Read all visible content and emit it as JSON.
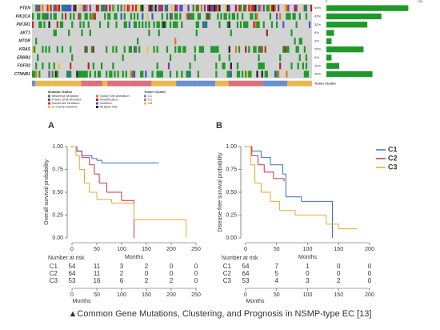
{
  "oncoprint": {
    "genes": [
      "PTEN",
      "PIK3CA",
      "PIK3R1",
      "AKT1",
      "MTOR",
      "KRAS",
      "ERBB2",
      "FGFR2",
      "CTNNB1"
    ],
    "pct": [
      64,
      43,
      32,
      6,
      4,
      29,
      4,
      10,
      36
    ],
    "pct_labels": [
      "64%",
      "43%",
      "32%",
      "6%",
      "4%",
      "29%",
      "4%",
      "10%",
      "36%"
    ],
    "scale_ticks": [
      0,
      134
    ],
    "cluster_label": "Tumor Cluster",
    "mutation_title": "Mutation Status",
    "mutation_items": [
      "Missense Mutation",
      "Frame Shift Mutation",
      "Nonsense Mutation",
      "In Frame Deletion",
      "Splice Site Alteration",
      "Amplification",
      "Deletion",
      "Multiple Hits"
    ],
    "mutation_colors": [
      "#1f9a2a",
      "#7b3fa0",
      "#c8312f",
      "#e8c23a",
      "#e07b1f",
      "#b01f3a",
      "#3a5fc8",
      "#222222"
    ],
    "cluster_title": "Tumor Cluster",
    "cluster_items": [
      "C1",
      "C2",
      "C3"
    ],
    "cluster_colors": [
      "#6a8fd0",
      "#d9707a",
      "#e8b850"
    ]
  },
  "chart_data": [
    {
      "type": "line",
      "panel": "A",
      "xlabel": "Months",
      "ylabel": "Overall survival probability",
      "xlim": [
        0,
        250
      ],
      "xticks": [
        0,
        50,
        100,
        150,
        200,
        250
      ],
      "ylim": [
        0,
        1
      ],
      "yticks": [
        {
          "value": 0,
          "label": "0.00"
        },
        {
          "value": 0.25,
          "label": "0.25"
        },
        {
          "value": 0.5,
          "label": "0.50"
        },
        {
          "value": 0.75,
          "label": "0.75"
        },
        {
          "value": 1,
          "label": "1.00"
        }
      ],
      "series": [
        {
          "color": "#3a6fc0",
          "x": [
            0,
            10,
            20,
            40,
            50,
            60,
            175
          ],
          "values": [
            1.0,
            0.95,
            0.9,
            0.87,
            0.85,
            0.82,
            0.82
          ]
        },
        {
          "color": "#c8314a",
          "x": [
            0,
            8,
            20,
            35,
            45,
            55,
            70,
            100,
            125
          ],
          "values": [
            1.0,
            0.95,
            0.88,
            0.8,
            0.7,
            0.6,
            0.5,
            0.41,
            0.0
          ]
        },
        {
          "color": "#e8a830",
          "x": [
            0,
            8,
            15,
            25,
            35,
            50,
            80,
            125,
            200,
            230
          ],
          "values": [
            1.0,
            0.9,
            0.75,
            0.6,
            0.5,
            0.42,
            0.38,
            0.2,
            0.2,
            0.0
          ]
        }
      ],
      "risk_table": {
        "title": "Number at risk",
        "rows": [
          {
            "name": "C1",
            "values": [
              54,
              11,
              3,
              2,
              0,
              0
            ]
          },
          {
            "name": "C2",
            "values": [
              64,
              11,
              2,
              0,
              0,
              0
            ]
          },
          {
            "name": "C3",
            "values": [
              53,
              16,
              6,
              2,
              2,
              0
            ]
          }
        ]
      }
    },
    {
      "type": "line",
      "panel": "B",
      "xlabel": "Months",
      "ylabel": "Disease-free survival probability",
      "xlim": [
        0,
        200
      ],
      "xticks": [
        0,
        50,
        100,
        150,
        200
      ],
      "ylim": [
        0,
        1
      ],
      "yticks": [
        {
          "value": 0,
          "label": "0.00"
        },
        {
          "value": 0.25,
          "label": "0.25"
        },
        {
          "value": 0.5,
          "label": "0.50"
        },
        {
          "value": 0.75,
          "label": "0.75"
        },
        {
          "value": 1,
          "label": "1.00"
        }
      ],
      "series": [
        {
          "name": "C1",
          "color": "#3a6fc0",
          "x": [
            0,
            10,
            25,
            40,
            60,
            65,
            90,
            140
          ],
          "values": [
            1.0,
            0.95,
            0.88,
            0.8,
            0.7,
            0.45,
            0.4,
            0.0
          ]
        },
        {
          "name": "C2",
          "color": "#c8314a",
          "x": [
            0,
            10,
            20,
            30,
            45,
            62
          ],
          "values": [
            1.0,
            0.9,
            0.8,
            0.72,
            0.65,
            0.62
          ]
        },
        {
          "name": "C3",
          "color": "#e8a830",
          "x": [
            0,
            8,
            15,
            25,
            40,
            55,
            80,
            130,
            150,
            180
          ],
          "values": [
            1.0,
            0.8,
            0.6,
            0.5,
            0.4,
            0.3,
            0.25,
            0.15,
            0.1,
            0.1
          ]
        }
      ],
      "risk_table": {
        "title": "Number at risk",
        "rows": [
          {
            "name": "C1",
            "values": [
              54,
              7,
              1,
              0,
              0
            ]
          },
          {
            "name": "C2",
            "values": [
              64,
              5,
              0,
              0,
              0
            ]
          },
          {
            "name": "C3",
            "values": [
              53,
              4,
              3,
              2,
              0
            ]
          }
        ]
      }
    }
  ],
  "caption": "▲Common Gene Mutations, Clustering, and Prognosis in NSMP-type EC [13]"
}
